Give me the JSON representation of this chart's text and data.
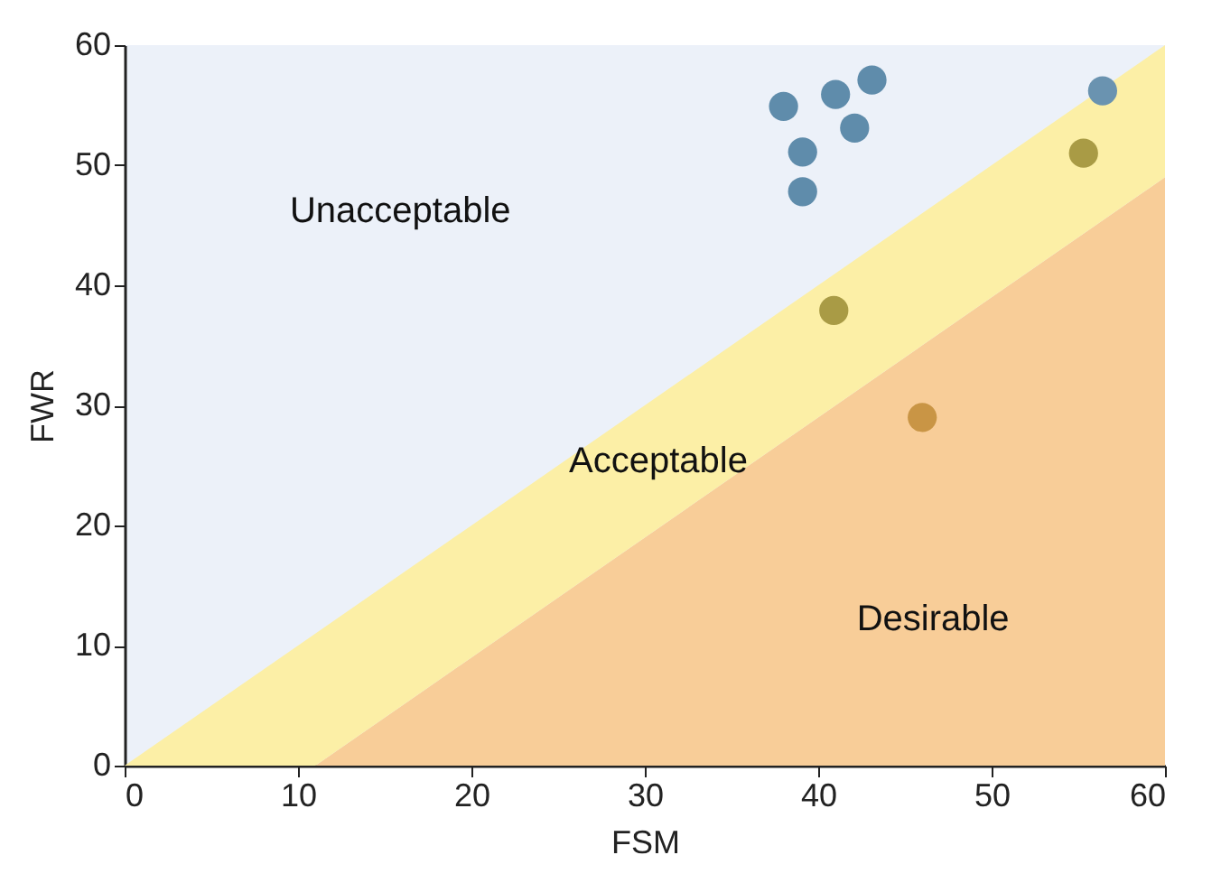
{
  "chart_data": {
    "type": "scatter",
    "xlabel": "FSM",
    "ylabel": "FWR",
    "xlim": [
      0,
      60
    ],
    "ylim": [
      0,
      60
    ],
    "xticks": [
      0,
      10,
      20,
      30,
      40,
      50,
      60
    ],
    "yticks": [
      0,
      10,
      20,
      30,
      40,
      50,
      60
    ],
    "stacked": true,
    "annotations": [
      "Unacceptable"
    ],
    "series": [
      {
        "type": "area",
        "name": "Desirable",
        "color": "#f8cd98",
        "x": [
          0,
          11,
          60
        ],
        "values": [
          0,
          0,
          49
        ]
      },
      {
        "type": "area",
        "name": "Acceptable",
        "color": "#fcefa6",
        "x": [
          0,
          11,
          60
        ],
        "values": [
          0,
          11,
          11
        ]
      },
      {
        "marker": "circle",
        "x": [
          38,
          41,
          43.1,
          42.1,
          39.1,
          39.1,
          56.4,
          55.3,
          40.9,
          46
        ],
        "values": [
          54.9,
          55.9,
          57.1,
          53.1,
          51.1,
          47.8,
          56.2,
          51,
          37.9,
          29
        ],
        "colors": [
          "#5f8cab",
          "#5f8cab",
          "#5f8cab",
          "#5f8cab",
          "#5f8cab",
          "#5f8cab",
          "#6a93b0",
          "#a99b45",
          "#a99b45",
          "#c99545"
        ]
      }
    ]
  }
}
